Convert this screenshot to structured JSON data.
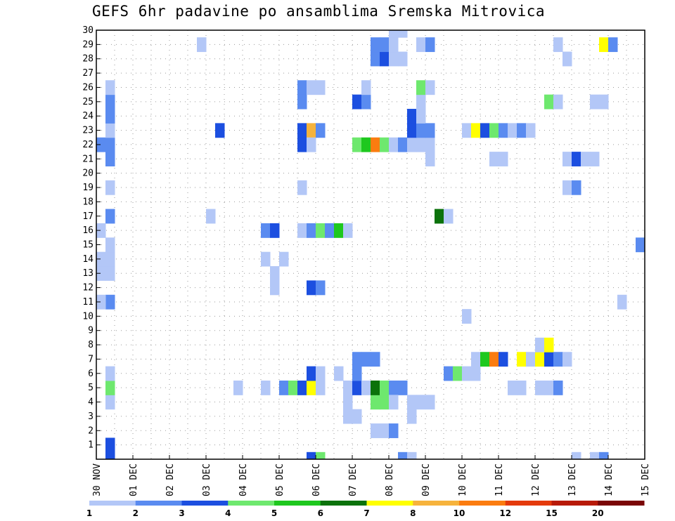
{
  "chart_data": {
    "type": "heatmap",
    "title": "GEFS 6hr padavine po ansamblima Sremska Mitrovica",
    "xlabel": "",
    "ylabel": "",
    "x_step_hours": 6,
    "x_steps": 60,
    "x_ticks": [
      {
        "step": 0,
        "label": "30 NOV"
      },
      {
        "step": 4,
        "label": "01 DEC"
      },
      {
        "step": 8,
        "label": "02 DEC"
      },
      {
        "step": 12,
        "label": "03 DEC"
      },
      {
        "step": 16,
        "label": "04 DEC"
      },
      {
        "step": 20,
        "label": "05 DEC"
      },
      {
        "step": 24,
        "label": "06 DEC"
      },
      {
        "step": 28,
        "label": "07 DEC"
      },
      {
        "step": 32,
        "label": "08 DEC"
      },
      {
        "step": 36,
        "label": "09 DEC"
      },
      {
        "step": 40,
        "label": "10 DEC"
      },
      {
        "step": 44,
        "label": "11 DEC"
      },
      {
        "step": 48,
        "label": "12 DEC"
      },
      {
        "step": 52,
        "label": "13 DEC"
      },
      {
        "step": 56,
        "label": "14 DEC"
      },
      {
        "step": 60,
        "label": "15 DEC"
      }
    ],
    "y_ticks": [
      "1",
      "2",
      "3",
      "4",
      "5",
      "6",
      "7",
      "8",
      "9",
      "10",
      "11",
      "12",
      "13",
      "14",
      "15",
      "16",
      "17",
      "18",
      "19",
      "20",
      "21",
      "22",
      "23",
      "24",
      "25",
      "26",
      "27",
      "28",
      "29",
      "30"
    ],
    "ylim": [
      0,
      30
    ],
    "legend": {
      "thresholds": [
        "1",
        "2",
        "3",
        "4",
        "5",
        "6",
        "7",
        "8",
        "10",
        "12",
        "15",
        "20"
      ],
      "colors": [
        "#b3c7f7",
        "#5a8bf0",
        "#1c4fe0",
        "#6ee86e",
        "#1ec81e",
        "#0b720b",
        "#ffff00",
        "#f6b33c",
        "#fb7c10",
        "#e43a0c",
        "#b81a08",
        "#7a0606"
      ]
    },
    "cells": [
      [
        0,
        22,
        2
      ],
      [
        1,
        22,
        2
      ],
      [
        1,
        0,
        3
      ],
      [
        1,
        1,
        3
      ],
      [
        1,
        4,
        1
      ],
      [
        1,
        5,
        4
      ],
      [
        1,
        6,
        1
      ],
      [
        1,
        11,
        2
      ],
      [
        1,
        13,
        1
      ],
      [
        1,
        14,
        1
      ],
      [
        1,
        15,
        1
      ],
      [
        1,
        17,
        2
      ],
      [
        1,
        19,
        1
      ],
      [
        1,
        21,
        2
      ],
      [
        1,
        23,
        1
      ],
      [
        1,
        24,
        2
      ],
      [
        1,
        25,
        2
      ],
      [
        1,
        26,
        1
      ],
      [
        0,
        11,
        1
      ],
      [
        0,
        13,
        1
      ],
      [
        0,
        14,
        1
      ],
      [
        0,
        16,
        1
      ],
      [
        11,
        29,
        1
      ],
      [
        12,
        17,
        1
      ],
      [
        13,
        23,
        3
      ],
      [
        15,
        5,
        1
      ],
      [
        18,
        5,
        1
      ],
      [
        18,
        16,
        2
      ],
      [
        18,
        14,
        1
      ],
      [
        19,
        12,
        1
      ],
      [
        19,
        13,
        1
      ],
      [
        19,
        16,
        3
      ],
      [
        20,
        14,
        1
      ],
      [
        20,
        5,
        2
      ],
      [
        21,
        5,
        4
      ],
      [
        22,
        5,
        3
      ],
      [
        22,
        26,
        2
      ],
      [
        22,
        16,
        1
      ],
      [
        23,
        5,
        7
      ],
      [
        23,
        6,
        3
      ],
      [
        24,
        5,
        1
      ],
      [
        24,
        6,
        1
      ],
      [
        22,
        25,
        2
      ],
      [
        22,
        23,
        3
      ],
      [
        22,
        22,
        3
      ],
      [
        22,
        19,
        1
      ],
      [
        23,
        26,
        1
      ],
      [
        23,
        23,
        8
      ],
      [
        23,
        22,
        1
      ],
      [
        24,
        23,
        2
      ],
      [
        24,
        26,
        1
      ],
      [
        23,
        16,
        2
      ],
      [
        23,
        12,
        3
      ],
      [
        24,
        16,
        4
      ],
      [
        24,
        12,
        2
      ],
      [
        25,
        16,
        2
      ],
      [
        26,
        16,
        5
      ],
      [
        27,
        16,
        1
      ],
      [
        23,
        0,
        3
      ],
      [
        24,
        0,
        4
      ],
      [
        26,
        6,
        1
      ],
      [
        27,
        5,
        1
      ],
      [
        27,
        4,
        1
      ],
      [
        27,
        3,
        1
      ],
      [
        28,
        3,
        1
      ],
      [
        28,
        5,
        3
      ],
      [
        28,
        6,
        2
      ],
      [
        28,
        7,
        2
      ],
      [
        29,
        7,
        2
      ],
      [
        29,
        5,
        1
      ],
      [
        30,
        7,
        2
      ],
      [
        28,
        22,
        4
      ],
      [
        29,
        22,
        5
      ],
      [
        30,
        22,
        9
      ],
      [
        31,
        22,
        4
      ],
      [
        32,
        22,
        1
      ],
      [
        33,
        22,
        2
      ],
      [
        34,
        22,
        1
      ],
      [
        35,
        22,
        1
      ],
      [
        36,
        22,
        1
      ],
      [
        28,
        25,
        3
      ],
      [
        29,
        25,
        2
      ],
      [
        29,
        26,
        1
      ],
      [
        30,
        4,
        4
      ],
      [
        30,
        5,
        6
      ],
      [
        31,
        4,
        4
      ],
      [
        31,
        5,
        4
      ],
      [
        32,
        5,
        2
      ],
      [
        33,
        5,
        2
      ],
      [
        32,
        4,
        1
      ],
      [
        30,
        2,
        1
      ],
      [
        31,
        2,
        1
      ],
      [
        32,
        2,
        2
      ],
      [
        30,
        28,
        2
      ],
      [
        30,
        29,
        2
      ],
      [
        31,
        28,
        3
      ],
      [
        31,
        29,
        2
      ],
      [
        32,
        28,
        1
      ],
      [
        32,
        29,
        1
      ],
      [
        32,
        30,
        1
      ],
      [
        33,
        30,
        1
      ],
      [
        33,
        28,
        1
      ],
      [
        33,
        0,
        2
      ],
      [
        34,
        0,
        1
      ],
      [
        34,
        3,
        1
      ],
      [
        34,
        4,
        1
      ],
      [
        35,
        4,
        1
      ],
      [
        36,
        4,
        1
      ],
      [
        34,
        23,
        3
      ],
      [
        34,
        24,
        3
      ],
      [
        35,
        23,
        2
      ],
      [
        35,
        24,
        1
      ],
      [
        35,
        25,
        1
      ],
      [
        35,
        26,
        4
      ],
      [
        36,
        26,
        1
      ],
      [
        35,
        29,
        1
      ],
      [
        36,
        29,
        2
      ],
      [
        36,
        23,
        2
      ],
      [
        36,
        21,
        1
      ],
      [
        37,
        17,
        6
      ],
      [
        38,
        17,
        1
      ],
      [
        38,
        6,
        2
      ],
      [
        39,
        6,
        4
      ],
      [
        40,
        6,
        1
      ],
      [
        41,
        6,
        1
      ],
      [
        41,
        7,
        1
      ],
      [
        42,
        7,
        5
      ],
      [
        43,
        7,
        9
      ],
      [
        44,
        7,
        3
      ],
      [
        40,
        10,
        1
      ],
      [
        40,
        23,
        1
      ],
      [
        41,
        23,
        7
      ],
      [
        42,
        23,
        3
      ],
      [
        43,
        23,
        4
      ],
      [
        44,
        23,
        2
      ],
      [
        45,
        23,
        1
      ],
      [
        46,
        23,
        2
      ],
      [
        47,
        23,
        1
      ],
      [
        43,
        21,
        1
      ],
      [
        44,
        21,
        1
      ],
      [
        45,
        5,
        1
      ],
      [
        46,
        5,
        1
      ],
      [
        46,
        7,
        7
      ],
      [
        47,
        7,
        1
      ],
      [
        48,
        7,
        7
      ],
      [
        49,
        7,
        3
      ],
      [
        48,
        8,
        1
      ],
      [
        49,
        8,
        7
      ],
      [
        48,
        5,
        1
      ],
      [
        49,
        5,
        1
      ],
      [
        50,
        5,
        2
      ],
      [
        50,
        7,
        2
      ],
      [
        51,
        7,
        1
      ],
      [
        49,
        25,
        4
      ],
      [
        50,
        25,
        1
      ],
      [
        50,
        29,
        1
      ],
      [
        51,
        28,
        1
      ],
      [
        51,
        21,
        1
      ],
      [
        51,
        19,
        1
      ],
      [
        52,
        19,
        2
      ],
      [
        52,
        21,
        3
      ],
      [
        53,
        21,
        1
      ],
      [
        52,
        0,
        1
      ],
      [
        54,
        25,
        1
      ],
      [
        55,
        25,
        1
      ],
      [
        54,
        21,
        1
      ],
      [
        54,
        0,
        1
      ],
      [
        55,
        0,
        2
      ],
      [
        55,
        29,
        7
      ],
      [
        56,
        29,
        2
      ],
      [
        57,
        11,
        1
      ],
      [
        59,
        15,
        2
      ]
    ]
  }
}
